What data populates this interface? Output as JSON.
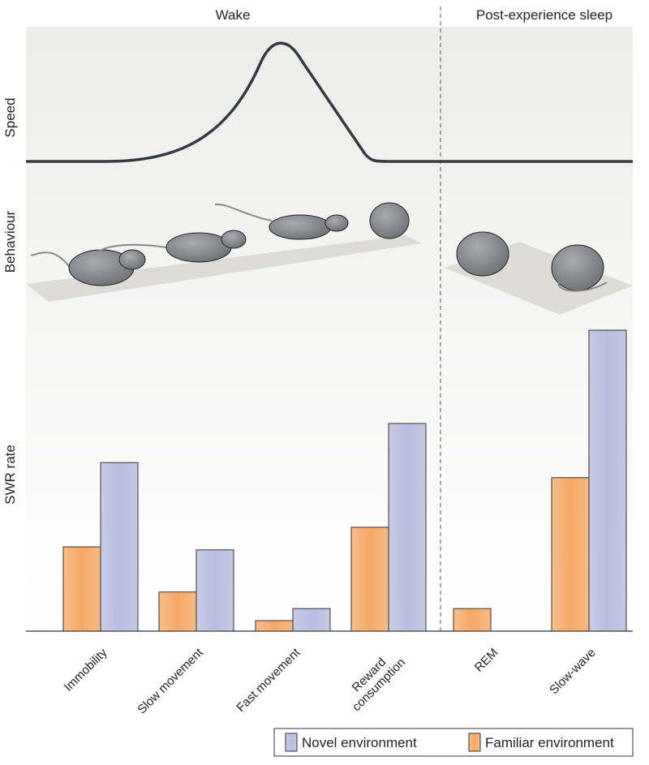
{
  "chart_data": {
    "type": "bar",
    "column_titles": [
      "Wake",
      "Post-experience sleep"
    ],
    "row_labels": [
      "Speed",
      "Behaviour",
      "SWR rate"
    ],
    "categories": [
      "Immobility",
      "Slow movement",
      "Fast movement",
      "Reward\nconsumption",
      "REM",
      "Slow-wave"
    ],
    "series": [
      {
        "name": "Novel environment",
        "color": "#b8bce0",
        "values": [
          56,
          27,
          7.5,
          69,
          null,
          100
        ]
      },
      {
        "name": "Familiar environment",
        "color": "#f5a866",
        "values": [
          28,
          13,
          3.5,
          34.5,
          7.5,
          51
        ]
      }
    ],
    "legend": "bottom-right"
  }
}
